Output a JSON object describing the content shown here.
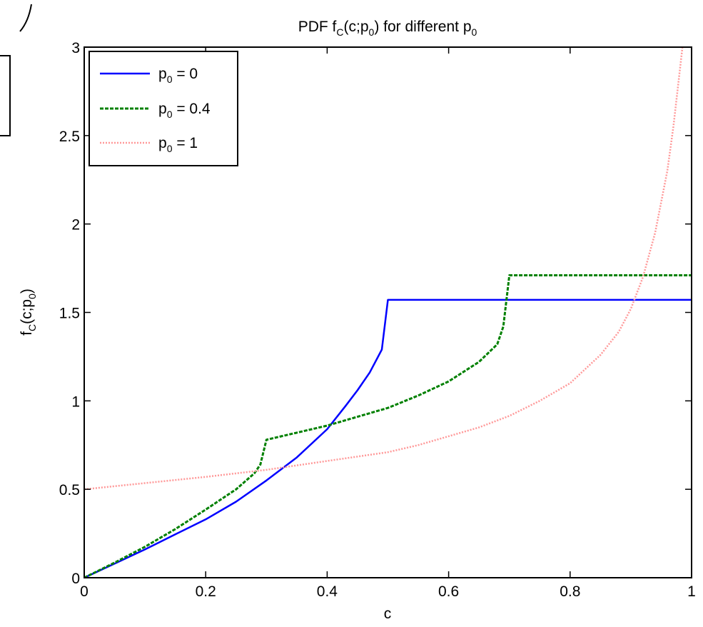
{
  "chart_data": {
    "type": "line",
    "title": {
      "prefix": "PDF f",
      "sub1": "C",
      "mid": "(c;p",
      "sub2": "0",
      "mid2": ") for different p",
      "sub3": "0"
    },
    "xlabel": "c",
    "ylabel": {
      "prefix": "f",
      "sub1": "C",
      "mid": "(c;p",
      "sub2": "0",
      "suffix": ")"
    },
    "xlim": [
      0,
      1
    ],
    "ylim": [
      0,
      3
    ],
    "xticks": [
      0,
      0.2,
      0.4,
      0.6,
      0.8,
      1
    ],
    "xtick_labels": [
      "0",
      "0.2",
      "0.4",
      "0.6",
      "0.8",
      "1"
    ],
    "yticks": [
      0,
      0.5,
      1,
      1.5,
      2,
      2.5,
      3
    ],
    "ytick_labels": [
      "0",
      "0.5",
      "1",
      "1.5",
      "2",
      "2.5",
      "3"
    ],
    "grid": false,
    "legend_position": "top-left",
    "series": [
      {
        "legend": {
          "prefix": "p",
          "sub": "0",
          "suffix": " = 0"
        },
        "color": "#0000ff",
        "style": "solid",
        "points": [
          [
            0,
            0
          ],
          [
            0.05,
            0.08
          ],
          [
            0.1,
            0.16
          ],
          [
            0.15,
            0.245
          ],
          [
            0.2,
            0.33
          ],
          [
            0.25,
            0.43
          ],
          [
            0.3,
            0.55
          ],
          [
            0.35,
            0.68
          ],
          [
            0.4,
            0.84
          ],
          [
            0.43,
            0.97
          ],
          [
            0.45,
            1.06
          ],
          [
            0.47,
            1.16
          ],
          [
            0.49,
            1.29
          ],
          [
            0.5,
            1.571
          ],
          [
            1,
            1.571
          ]
        ]
      },
      {
        "legend": {
          "prefix": "p",
          "sub": "0",
          "suffix": " = 0.4"
        },
        "color": "#008000",
        "style": "dashed",
        "points": [
          [
            0,
            0
          ],
          [
            0.05,
            0.085
          ],
          [
            0.1,
            0.175
          ],
          [
            0.15,
            0.275
          ],
          [
            0.2,
            0.385
          ],
          [
            0.25,
            0.5
          ],
          [
            0.28,
            0.59
          ],
          [
            0.29,
            0.64
          ],
          [
            0.3,
            0.78
          ],
          [
            0.35,
            0.82
          ],
          [
            0.4,
            0.86
          ],
          [
            0.45,
            0.91
          ],
          [
            0.5,
            0.96
          ],
          [
            0.55,
            1.03
          ],
          [
            0.6,
            1.11
          ],
          [
            0.65,
            1.22
          ],
          [
            0.68,
            1.32
          ],
          [
            0.69,
            1.42
          ],
          [
            0.7,
            1.71
          ],
          [
            1,
            1.71
          ]
        ]
      },
      {
        "legend": {
          "prefix": "p",
          "sub": "0",
          "suffix": " = 1"
        },
        "color": "#ff9999",
        "style": "dotted",
        "points": [
          [
            0,
            0.5
          ],
          [
            0.1,
            0.535
          ],
          [
            0.2,
            0.57
          ],
          [
            0.3,
            0.61
          ],
          [
            0.4,
            0.66
          ],
          [
            0.5,
            0.71
          ],
          [
            0.55,
            0.75
          ],
          [
            0.6,
            0.8
          ],
          [
            0.65,
            0.85
          ],
          [
            0.7,
            0.915
          ],
          [
            0.75,
            1.0
          ],
          [
            0.8,
            1.1
          ],
          [
            0.85,
            1.26
          ],
          [
            0.88,
            1.39
          ],
          [
            0.9,
            1.52
          ],
          [
            0.92,
            1.7
          ],
          [
            0.94,
            1.95
          ],
          [
            0.96,
            2.3
          ],
          [
            0.97,
            2.55
          ],
          [
            0.98,
            2.85
          ],
          [
            0.985,
            3.0
          ]
        ]
      }
    ]
  }
}
